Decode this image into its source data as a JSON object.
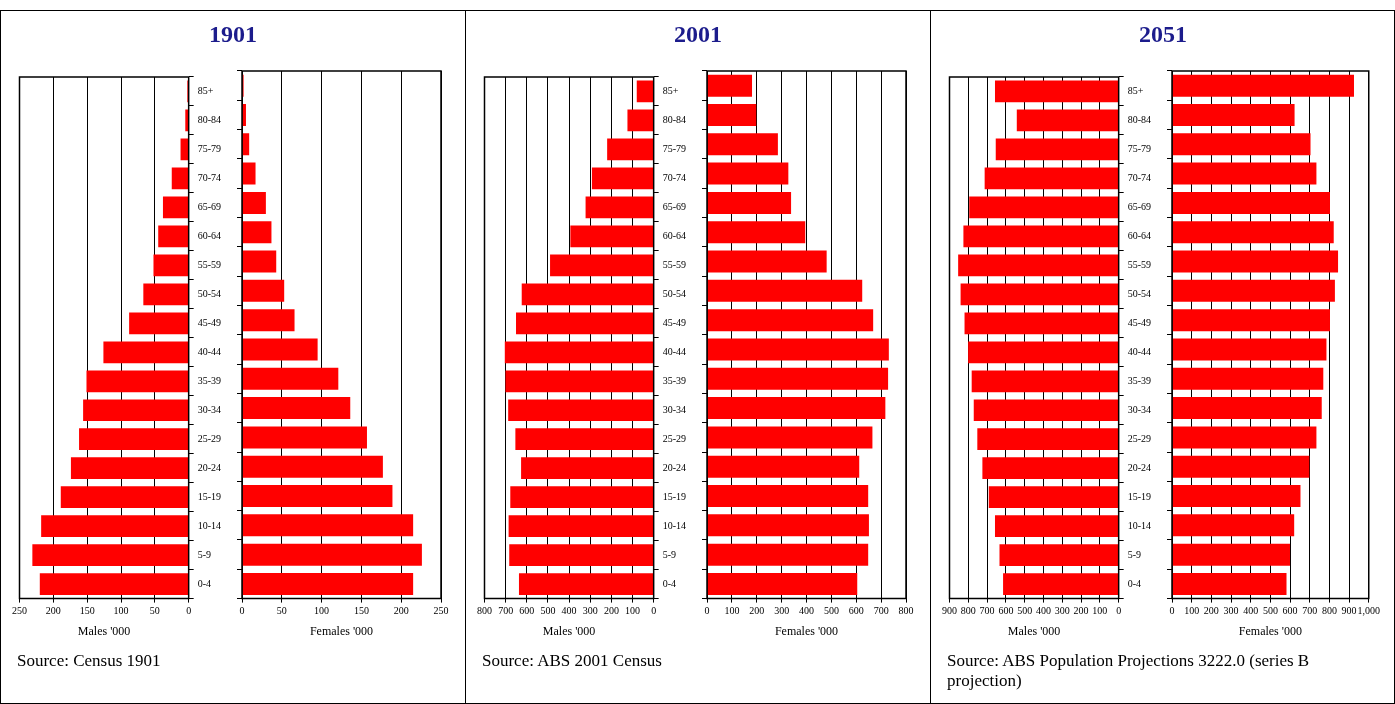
{
  "chart_data": [
    {
      "type": "bar",
      "orientation": "horizontal",
      "title": "1901",
      "xlabel": "Males '000",
      "annotations": [
        "Source: Census 1901"
      ],
      "categories": [
        "85+",
        "80-84",
        "75-79",
        "70-74",
        "65-69",
        "60-64",
        "55-59",
        "50-54",
        "45-49",
        "40-44",
        "35-39",
        "30-34",
        "25-29",
        "20-24",
        "15-19",
        "10-14",
        "5-9",
        "0-4"
      ],
      "values": [
        2,
        5,
        12,
        25,
        38,
        45,
        52,
        67,
        88,
        126,
        151,
        156,
        162,
        174,
        189,
        218,
        231,
        220
      ],
      "color": "#ff0000",
      "xlim": [
        250,
        0
      ],
      "xticks": [
        250,
        200,
        150,
        100,
        50,
        0
      ],
      "grid": "x"
    },
    {
      "type": "bar",
      "orientation": "horizontal",
      "xlabel": "Females '000",
      "categories": [
        null,
        null,
        null,
        null,
        null,
        null,
        null,
        null,
        null,
        null,
        null,
        null,
        null,
        null,
        null,
        null,
        null,
        null
      ],
      "values": [
        2,
        5,
        9,
        17,
        30,
        37,
        43,
        53,
        66,
        95,
        121,
        136,
        157,
        177,
        189,
        215,
        226,
        215
      ],
      "color": "#ff0000",
      "xlim": [
        0,
        250
      ],
      "xticks": [
        0,
        50,
        100,
        150,
        200,
        250
      ],
      "grid": "x",
      "tick_labels": "x"
    },
    {
      "type": "bar",
      "orientation": "horizontal",
      "title": "2001",
      "xlabel": "Males '000",
      "annotations": [
        "Source: ABS 2001 Census"
      ],
      "categories": [
        "85+",
        "80-84",
        "75-79",
        "70-74",
        "65-69",
        "60-64",
        "55-59",
        "50-54",
        "45-49",
        "40-44",
        "35-39",
        "30-34",
        "25-29",
        "20-24",
        "15-19",
        "10-14",
        "5-9",
        "0-4"
      ],
      "values": [
        80,
        124,
        220,
        292,
        322,
        394,
        490,
        624,
        651,
        704,
        701,
        688,
        654,
        627,
        678,
        686,
        683,
        637
      ],
      "color": "#ff0000",
      "xlim": [
        800,
        0
      ],
      "xticks": [
        800,
        700,
        600,
        500,
        400,
        300,
        200,
        100,
        0
      ],
      "grid": "x"
    },
    {
      "type": "bar",
      "orientation": "horizontal",
      "xlabel": "Females '000",
      "categories": [
        null,
        null,
        null,
        null,
        null,
        null,
        null,
        null,
        null,
        null,
        null,
        null,
        null,
        null,
        null,
        null,
        null,
        null
      ],
      "values": [
        181,
        198,
        285,
        327,
        338,
        395,
        481,
        624,
        668,
        731,
        728,
        717,
        665,
        612,
        648,
        651,
        648,
        604
      ],
      "color": "#ff0000",
      "xlim": [
        0,
        800
      ],
      "xticks": [
        0,
        100,
        200,
        300,
        400,
        500,
        600,
        700,
        800
      ],
      "grid": "x",
      "tick_labels": "x"
    },
    {
      "type": "bar",
      "orientation": "horizontal",
      "title": "2051",
      "xlabel": "Males '000",
      "annotations": [
        "Source: ABS Population Projections 3222.0 (series B projection)"
      ],
      "categories": [
        "85+",
        "80-84",
        "75-79",
        "70-74",
        "65-69",
        "60-64",
        "55-59",
        "50-54",
        "45-49",
        "40-44",
        "35-39",
        "30-34",
        "25-29",
        "20-24",
        "15-19",
        "10-14",
        "5-9",
        "0-4"
      ],
      "values": [
        658,
        542,
        654,
        713,
        795,
        826,
        854,
        841,
        820,
        801,
        782,
        771,
        752,
        725,
        691,
        658,
        634,
        615
      ],
      "color": "#ff0000",
      "xlim": [
        900,
        0
      ],
      "xticks": [
        900,
        800,
        700,
        600,
        500,
        400,
        300,
        200,
        100,
        0
      ],
      "grid": "x"
    },
    {
      "type": "bar",
      "orientation": "horizontal",
      "xlabel": "Females '000",
      "categories": [
        null,
        null,
        null,
        null,
        null,
        null,
        null,
        null,
        null,
        null,
        null,
        null,
        null,
        null,
        null,
        null,
        null,
        null
      ],
      "values": [
        925,
        623,
        704,
        734,
        803,
        822,
        844,
        828,
        803,
        785,
        769,
        761,
        734,
        698,
        653,
        621,
        600,
        582
      ],
      "color": "#ff0000",
      "xlim": [
        0,
        1000
      ],
      "xticks": [
        0,
        100,
        200,
        300,
        400,
        500,
        600,
        700,
        800,
        900,
        {
          "value": 1000,
          "label": "1,000"
        }
      ],
      "grid": "x",
      "tick_labels": "x"
    }
  ]
}
